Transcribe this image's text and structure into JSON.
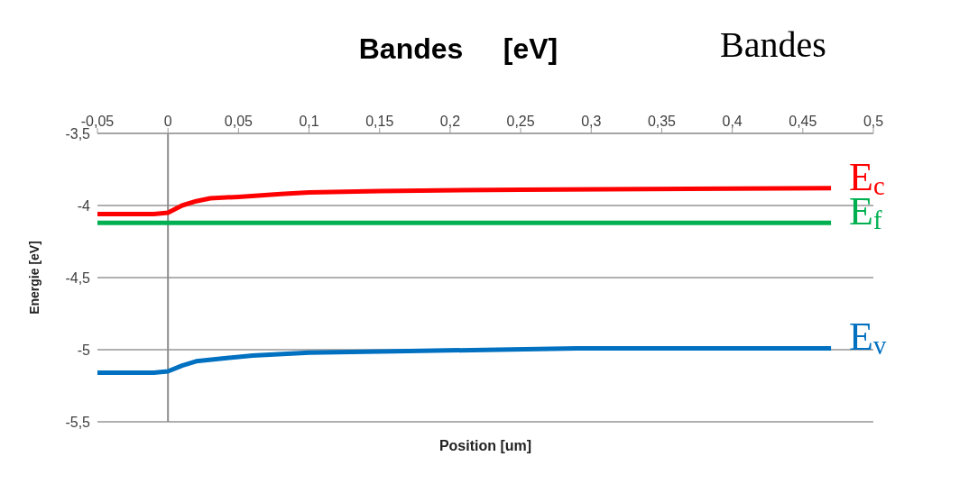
{
  "chart_data": {
    "type": "line",
    "title": "Bandes     [eV]",
    "xlabel": "Position [um]",
    "ylabel": "Energie   [eV]",
    "annotations": [
      "Bandes"
    ],
    "xlim": [
      -0.05,
      0.5
    ],
    "xticks": [
      {
        "value": -0.05,
        "label": "-0,05"
      },
      {
        "value": 0,
        "label": "0"
      },
      {
        "value": 0.05,
        "label": "0,05"
      },
      {
        "value": 0.1,
        "label": "0,1"
      },
      {
        "value": 0.15,
        "label": "0,15"
      },
      {
        "value": 0.2,
        "label": "0,2"
      },
      {
        "value": 0.25,
        "label": "0,25"
      },
      {
        "value": 0.3,
        "label": "0,3"
      },
      {
        "value": 0.35,
        "label": "0,35"
      },
      {
        "value": 0.4,
        "label": "0,4"
      },
      {
        "value": 0.45,
        "label": "0,45"
      },
      {
        "value": 0.5,
        "label": "0,5"
      }
    ],
    "ylim": [
      -5.5,
      -3.5
    ],
    "yticks": [
      {
        "value": -5.5,
        "label": "-5,5"
      },
      {
        "value": -5,
        "label": "-5"
      },
      {
        "value": -4.5,
        "label": "-4,5"
      },
      {
        "value": -4,
        "label": "-4"
      },
      {
        "value": -3.5,
        "label": "-3,5"
      }
    ],
    "grid": "y",
    "marker": "none",
    "line_style": "solid",
    "ref_lines": [
      {
        "axis": "x",
        "value": 0,
        "color": "#8c8c8c"
      }
    ],
    "series": [
      {
        "name": "E$_{c}$",
        "color": "#ff0000",
        "x": [
          -0.05,
          -0.01,
          0,
          0.01,
          0.02,
          0.03,
          0.05,
          0.08,
          0.1,
          0.15,
          0.25,
          0.47
        ],
        "values": [
          -4.06,
          -4.06,
          -4.05,
          -4.0,
          -3.97,
          -3.95,
          -3.94,
          -3.92,
          -3.91,
          -3.9,
          -3.89,
          -3.88
        ]
      },
      {
        "name": "E$_{f}$",
        "color": "#00b050",
        "x": [
          -0.05,
          0.47
        ],
        "values": [
          -4.12,
          -4.12
        ]
      },
      {
        "name": "E$_{v}$",
        "color": "#0070c0",
        "x": [
          -0.05,
          -0.01,
          0,
          0.01,
          0.02,
          0.04,
          0.06,
          0.1,
          0.17,
          0.29,
          0.47
        ],
        "values": [
          -5.16,
          -5.16,
          -5.15,
          -5.11,
          -5.08,
          -5.06,
          -5.04,
          -5.02,
          -5.01,
          -4.99,
          -4.99
        ]
      }
    ]
  }
}
